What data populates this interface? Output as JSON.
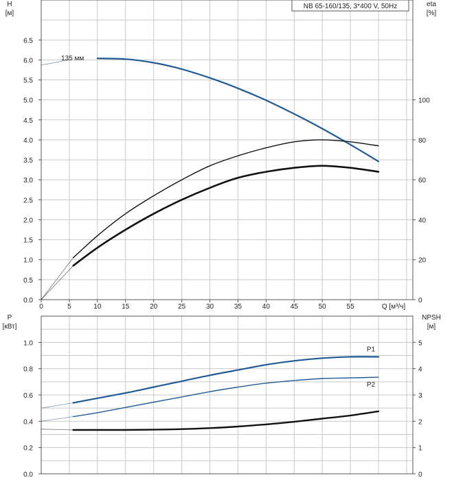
{
  "chart_data": [
    {
      "type": "line",
      "panel": "top",
      "title_box": "NB 65-160/135, 3*400 V, 50Hz",
      "xlabel": "Q [м³/ч]",
      "ylabel_left": "H",
      "ylabel_left_unit": "[м]",
      "ylabel_right": "eta",
      "ylabel_right_unit": "[%]",
      "xlim": [
        0,
        65
      ],
      "ylim_left": [
        0,
        7.5
      ],
      "ylim_right": [
        0,
        150
      ],
      "x_ticks": [
        "0",
        "5",
        "10",
        "15",
        "20",
        "25",
        "30",
        "35",
        "40",
        "45",
        "50",
        "55"
      ],
      "y_left_ticks": [
        "0.0",
        "0.5",
        "1.0",
        "1.5",
        "2.0",
        "2.5",
        "3.0",
        "3.5",
        "4.0",
        "4.5",
        "5.0",
        "5.5",
        "6.0",
        "6.5"
      ],
      "y_right_ticks": [
        "0",
        "20",
        "40",
        "60",
        "80",
        "100"
      ],
      "curve_label": "135 мм",
      "series": [
        {
          "key": "head",
          "axis": "left",
          "color": "#1f5a96",
          "x": [
            0,
            5,
            10,
            15,
            20,
            25,
            30,
            35,
            40,
            45,
            50,
            55,
            60
          ],
          "y": [
            5.87,
            6.0,
            6.04,
            6.02,
            5.93,
            5.77,
            5.55,
            5.29,
            4.99,
            4.65,
            4.28,
            3.88,
            3.46
          ],
          "faint_until": 5.7
        },
        {
          "key": "eta_thin",
          "axis": "right",
          "color": "#111111",
          "x": [
            0,
            5.7,
            10,
            15,
            20,
            25,
            30,
            35,
            40,
            45,
            50,
            55,
            60
          ],
          "y": [
            0,
            21,
            32,
            43,
            52,
            60,
            67,
            72,
            76,
            79,
            80,
            79,
            77
          ],
          "faint_until": 5.7
        },
        {
          "key": "eta_thick",
          "axis": "right",
          "color": "#111111",
          "x": [
            0,
            5.7,
            10,
            15,
            20,
            25,
            30,
            35,
            40,
            45,
            50,
            55,
            60
          ],
          "y": [
            0,
            17,
            26,
            35,
            43,
            50,
            56,
            61,
            64,
            66,
            67,
            66,
            64
          ],
          "faint_until": 5.7
        }
      ]
    },
    {
      "type": "line",
      "panel": "bottom",
      "ylabel_left": "P",
      "ylabel_left_unit": "[кВт]",
      "ylabel_right": "NPSH",
      "ylabel_right_unit": "[м]",
      "xlim": [
        0,
        65
      ],
      "ylim_left": [
        0,
        1.2
      ],
      "ylim_right": [
        0,
        6
      ],
      "y_left_ticks": [
        "0.0",
        "0.2",
        "0.4",
        "0.6",
        "0.8",
        "1.0"
      ],
      "y_right_ticks": [
        "0",
        "1",
        "2",
        "3",
        "4",
        "5"
      ],
      "series": [
        {
          "key": "P1",
          "name": "P1",
          "axis": "left",
          "color": "#1f5a96",
          "x": [
            0,
            5.7,
            10,
            15,
            20,
            25,
            30,
            35,
            40,
            45,
            50,
            55,
            60
          ],
          "y": [
            0.5,
            0.54,
            0.575,
            0.615,
            0.66,
            0.705,
            0.75,
            0.79,
            0.83,
            0.86,
            0.88,
            0.89,
            0.89
          ],
          "faint_until": 5.7
        },
        {
          "key": "P2",
          "name": "P2",
          "axis": "left",
          "color": "#1f5a96",
          "x": [
            0,
            5.7,
            10,
            15,
            20,
            25,
            30,
            35,
            40,
            45,
            50,
            55,
            60
          ],
          "y": [
            0.4,
            0.435,
            0.465,
            0.505,
            0.545,
            0.585,
            0.625,
            0.66,
            0.69,
            0.71,
            0.725,
            0.73,
            0.735
          ],
          "faint_until": 5.7
        },
        {
          "key": "NPSH",
          "axis": "right",
          "color": "#111111",
          "x": [
            0,
            5.7,
            10,
            15,
            20,
            25,
            30,
            35,
            40,
            45,
            50,
            55,
            60
          ],
          "y": [
            1.7,
            1.67,
            1.67,
            1.67,
            1.68,
            1.7,
            1.74,
            1.8,
            1.88,
            1.98,
            2.1,
            2.22,
            2.38
          ],
          "faint_until": 5.7
        }
      ]
    }
  ]
}
